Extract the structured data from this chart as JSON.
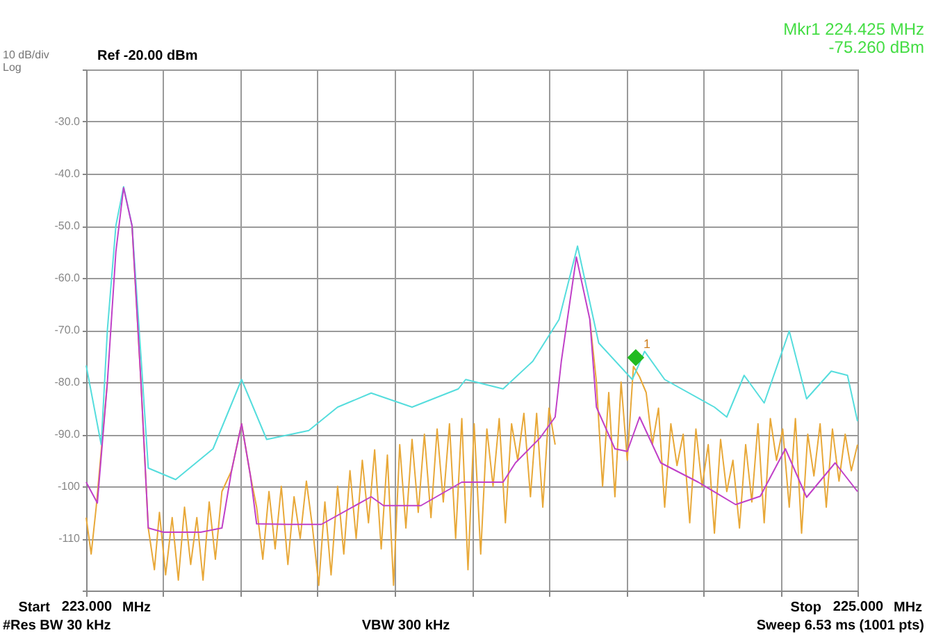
{
  "chart_data": {
    "type": "line",
    "xlim": [
      223,
      225
    ],
    "xticks": [
      {
        "value": 223,
        "label": "223.000"
      },
      {
        "value": 223.2,
        "label": null
      },
      {
        "value": 223.4,
        "label": null
      },
      {
        "value": 223.6,
        "label": null
      },
      {
        "value": 223.8,
        "label": null
      },
      {
        "value": 224,
        "label": null
      },
      {
        "value": 224.2,
        "label": null
      },
      {
        "value": 224.4,
        "label": null
      },
      {
        "value": 224.6,
        "label": null
      },
      {
        "value": 224.8,
        "label": null
      },
      {
        "value": 225,
        "label": "225.000"
      }
    ],
    "ylim": [
      -120,
      -20
    ],
    "yticks": [
      {
        "value": -20,
        "label": null
      },
      {
        "value": -30,
        "label": "-30.0"
      },
      {
        "value": -40,
        "label": "-40.0"
      },
      {
        "value": -50,
        "label": "-50.0"
      },
      {
        "value": -60,
        "label": "-60.0"
      },
      {
        "value": -70,
        "label": "-70.0"
      },
      {
        "value": -80,
        "label": "-80.0"
      },
      {
        "value": -90,
        "label": "-90.0"
      },
      {
        "value": -100,
        "label": "-100"
      },
      {
        "value": -110,
        "label": "-110"
      },
      {
        "value": -120,
        "label": null
      }
    ],
    "grid": true,
    "line_style": "solid",
    "series": [
      {
        "color": "#e8a838",
        "x": [
          223.0,
          223.013,
          223.026,
          223.055,
          223.077,
          223.097,
          223.119,
          223.142,
          223.161,
          223.177,
          223.19,
          223.206,
          223.223,
          223.239,
          223.255,
          223.271,
          223.287,
          223.303,
          223.319,
          223.335,
          223.352,
          223.377,
          223.403,
          223.426,
          223.442,
          223.458,
          223.474,
          223.49,
          223.506,
          223.523,
          223.539,
          223.555,
          223.571,
          223.587,
          223.603,
          223.619,
          223.635,
          223.652,
          223.668,
          223.684,
          223.7,
          223.716,
          223.732,
          223.748,
          223.765,
          223.781,
          223.797,
          223.813,
          223.829,
          223.845,
          223.861,
          223.877,
          223.894,
          223.91,
          223.926,
          223.942,
          223.958,
          223.974,
          223.99,
          224.006,
          224.023,
          224.039,
          224.055,
          224.071,
          224.087,
          224.103,
          224.119,
          224.135,
          224.152,
          224.168,
          224.184,
          224.2,
          224.216,
          224.232,
          224.271,
          224.306,
          224.323,
          224.339,
          224.355,
          224.371,
          224.387,
          224.403,
          224.419,
          224.435,
          224.452,
          224.468,
          224.484,
          224.5,
          224.516,
          224.532,
          224.548,
          224.565,
          224.581,
          224.597,
          224.613,
          224.629,
          224.645,
          224.661,
          224.677,
          224.694,
          224.71,
          224.726,
          224.742,
          224.758,
          224.774,
          224.79,
          224.806,
          224.823,
          224.839,
          224.855,
          224.871,
          224.887,
          224.903,
          224.919,
          224.935,
          224.952,
          224.968,
          224.984,
          225.0
        ],
        "values": [
          -106,
          -113,
          -104,
          -80,
          null,
          null,
          -50,
          -80,
          -108,
          -116,
          -105,
          -117,
          -106,
          -118,
          -104,
          -115,
          -106,
          -118,
          -103,
          -114,
          -101,
          -97,
          -88,
          -98,
          -104,
          -114,
          -101,
          -112,
          -100,
          -115,
          -102,
          -110,
          -99,
          -108,
          -119,
          -103,
          -117,
          -100,
          -113,
          -97,
          -110,
          -95,
          -107,
          -93,
          -112,
          -94,
          -119,
          -92,
          -108,
          -91,
          -105,
          -90,
          -106,
          -89,
          -103,
          -88,
          -110,
          -87,
          -116,
          -88,
          -113,
          -89,
          -100,
          -87,
          -107,
          -88,
          -95,
          -86,
          -102,
          -86,
          -104,
          -85,
          -92,
          null,
          null,
          -68,
          -80,
          -100,
          -82,
          -102,
          -80,
          -95,
          -77,
          -79,
          -82,
          -92,
          -85,
          -104,
          -88,
          -96,
          -90,
          -107,
          -89,
          -100,
          -92,
          -109,
          -91,
          -101,
          -95,
          -108,
          -92,
          -103,
          -88,
          -107,
          -87,
          -95,
          -89,
          -104,
          -87,
          -109,
          -90,
          -98,
          -88,
          -104,
          -89,
          -99,
          -90,
          -97,
          -92
        ]
      },
      {
        "color": "#55dddd",
        "x": [
          223.0,
          223.039,
          223.055,
          223.077,
          223.097,
          223.119,
          223.142,
          223.161,
          223.232,
          223.329,
          223.403,
          223.468,
          223.577,
          223.652,
          223.739,
          223.845,
          223.965,
          223.984,
          224.081,
          224.158,
          224.226,
          224.274,
          224.329,
          224.416,
          224.448,
          224.5,
          224.629,
          224.661,
          224.706,
          224.758,
          224.823,
          224.868,
          224.932,
          224.974,
          225.0
        ],
        "values": [
          -76.8,
          -92,
          -70,
          -50,
          -42.5,
          -50,
          -75,
          -96.5,
          -98.7,
          -92.8,
          -79.5,
          -91,
          -89.3,
          -84.8,
          -82.1,
          -84.8,
          -81.3,
          -79.5,
          -81.3,
          -76,
          -68,
          -53.9,
          -72.5,
          -79.5,
          -74.1,
          -79.5,
          -84.8,
          -86.7,
          -78.7,
          -84,
          -70.2,
          -83.2,
          -77.9,
          -78.7,
          -87.5
        ]
      },
      {
        "color": "#c040c8",
        "x": [
          223.0,
          223.029,
          223.055,
          223.077,
          223.097,
          223.119,
          223.142,
          223.161,
          223.2,
          223.297,
          223.352,
          223.377,
          223.403,
          223.426,
          223.442,
          223.523,
          223.61,
          223.739,
          223.771,
          223.868,
          223.974,
          224.081,
          224.113,
          224.177,
          224.216,
          224.232,
          224.271,
          224.306,
          224.323,
          224.371,
          224.403,
          224.435,
          224.49,
          224.587,
          224.684,
          224.748,
          224.813,
          224.868,
          224.942,
          225.0
        ],
        "values": [
          -99.2,
          -103.2,
          -80,
          -55,
          -42.7,
          -50,
          -80,
          -108,
          -108.8,
          -108.8,
          -108,
          -97,
          -88,
          -98,
          -107.2,
          -107.3,
          -107.3,
          -102,
          -103.7,
          -103.7,
          -99.2,
          -99.2,
          -95.5,
          -90.7,
          -86.7,
          -76,
          -56,
          -68,
          -84.8,
          -92.8,
          -93.3,
          -86.7,
          -95.5,
          -99.2,
          -103.5,
          -101.9,
          -92.8,
          -102.1,
          -95.5,
          -101
        ]
      },
      {
        "type": "scatter",
        "marker": "diamond",
        "color": "#22bb22",
        "x": [
          224.425
        ],
        "values": [
          -75.3
        ]
      }
    ],
    "annotations": [
      "Start",
      "MHz",
      "Stop",
      "MHz",
      "10 dB/div",
      "Log",
      "Ref -20.00 dBm",
      "Mkr1 224.425 MHz",
      "-75.260 dBm",
      "#Res BW 30 kHz",
      "VBW 300 kHz",
      "Sweep 6.53 ms (1001 pts)",
      {
        "text": "1",
        "x": 224.425,
        "y": -75.3
      }
    ]
  }
}
